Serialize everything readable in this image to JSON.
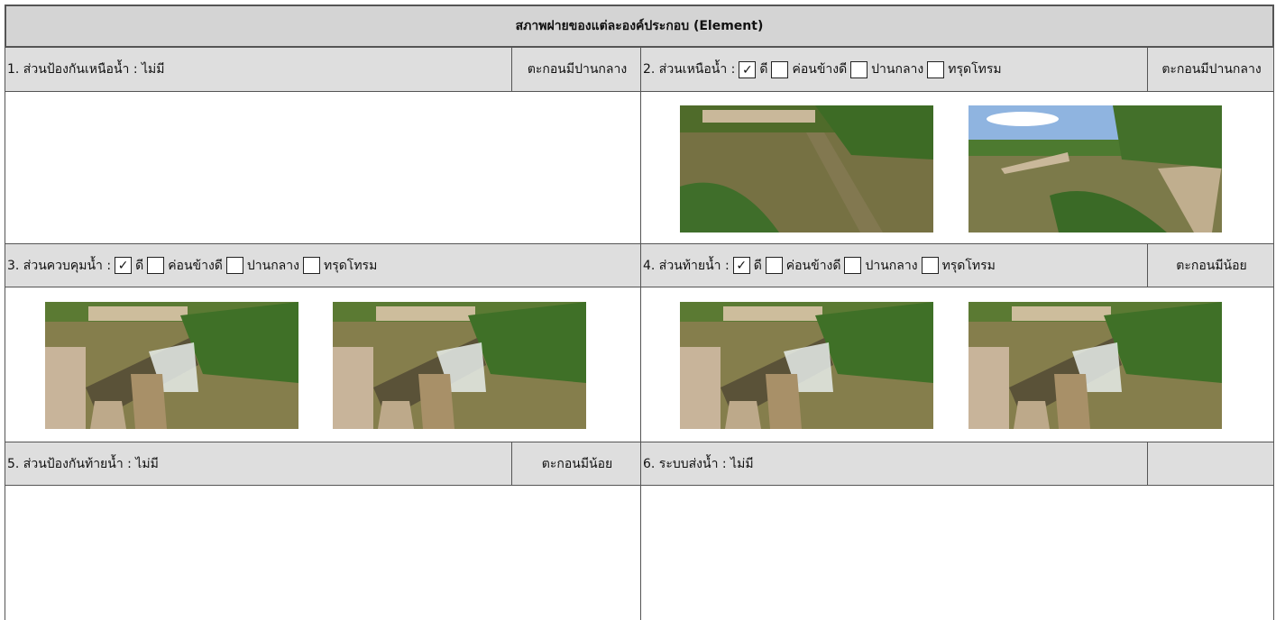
{
  "title": "สภาพฝายของแต่ละองค์ประกอบ (Element)",
  "sections": [
    {
      "label": "1. ส่วนป้องกันเหนือน้ำ : ไม่มี",
      "status": "ตะกอนมีปานกลาง"
    },
    {
      "label": "2. ส่วนเหนือน้ำ :",
      "options": [
        {
          "mark": "✓",
          "label": "ดี"
        },
        {
          "label": "ค่อนข้างดี"
        },
        {
          "label": "ปานกลาง"
        },
        {
          "label": "ทรุดโทรม"
        }
      ],
      "status": "ตะกอนมีปานกลาง"
    },
    {
      "label": "3. ส่วนควบคุมน้ำ :",
      "options": [
        {
          "mark": "✓",
          "label": "ดี"
        },
        {
          "label": "ค่อนข้างดี"
        },
        {
          "label": "ปานกลาง"
        },
        {
          "label": "ทรุดโทรม"
        }
      ]
    },
    {
      "label": "4. ส่วนท้ายน้ำ :",
      "options": [
        {
          "mark": "✓",
          "label": "ดี"
        },
        {
          "label": "ค่อนข้างดี"
        },
        {
          "label": "ปานกลาง"
        },
        {
          "label": "ทรุดโทรม"
        }
      ],
      "status": "ตะกอนมีน้อย"
    },
    {
      "label": "5. ส่วนป้องกันท้ายน้ำ : ไม่มี",
      "status": "ตะกอนมีน้อย"
    },
    {
      "label": "6. ระบบส่งน้ำ : ไม่มี"
    }
  ]
}
